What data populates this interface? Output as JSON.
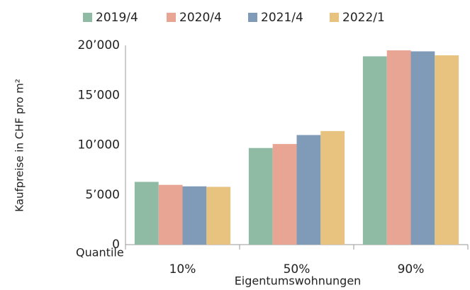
{
  "chart_data": {
    "type": "bar",
    "categories": [
      "10%",
      "50%",
      "90%"
    ],
    "series": [
      {
        "name": "2019/4",
        "color": "#8fbaa3",
        "values": [
          6300,
          9700,
          18900
        ]
      },
      {
        "name": "2020/4",
        "color": "#e8a593",
        "values": [
          6000,
          10100,
          19500
        ]
      },
      {
        "name": "2021/4",
        "color": "#7f9bb8",
        "values": [
          5850,
          11000,
          19400
        ]
      },
      {
        "name": "2022/1",
        "color": "#e8c27f",
        "values": [
          5800,
          11400,
          19000
        ]
      }
    ],
    "y_label": "Kaufpreise in CHF pro m²",
    "x_label": "Eigentumswohnungen",
    "annotations": [
      "Quantile"
    ],
    "ylim": [
      0,
      20000
    ],
    "yticks": [
      0,
      {
        "value": 5000,
        "label": "5’000"
      },
      {
        "value": 10000,
        "label": "10’000"
      },
      {
        "value": 15000,
        "label": "15’000"
      },
      {
        "value": 20000,
        "label": "20’000"
      }
    ],
    "grid": false,
    "legend": "top"
  }
}
